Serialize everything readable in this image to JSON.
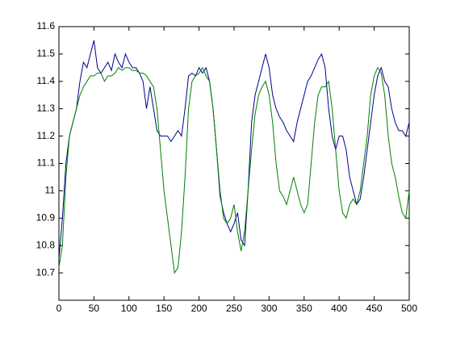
{
  "chart_data": {
    "type": "line",
    "x": [
      0,
      5,
      10,
      15,
      20,
      25,
      30,
      35,
      40,
      45,
      50,
      55,
      60,
      65,
      70,
      75,
      80,
      85,
      90,
      95,
      100,
      105,
      110,
      115,
      120,
      125,
      130,
      135,
      140,
      145,
      150,
      155,
      160,
      165,
      170,
      175,
      180,
      185,
      190,
      195,
      200,
      205,
      210,
      215,
      220,
      225,
      230,
      235,
      240,
      245,
      250,
      255,
      260,
      265,
      270,
      275,
      280,
      285,
      290,
      295,
      300,
      305,
      310,
      315,
      320,
      325,
      330,
      335,
      340,
      345,
      350,
      355,
      360,
      365,
      370,
      375,
      380,
      385,
      390,
      395,
      400,
      405,
      410,
      415,
      420,
      425,
      430,
      435,
      440,
      445,
      450,
      455,
      460,
      465,
      470,
      475,
      480,
      485,
      490,
      495,
      500
    ],
    "series": [
      {
        "color": "#00008b",
        "values": [
          10.75,
          10.9,
          11.1,
          11.2,
          11.25,
          11.3,
          11.4,
          11.47,
          11.45,
          11.5,
          11.55,
          11.45,
          11.43,
          11.45,
          11.47,
          11.44,
          11.5,
          11.47,
          11.45,
          11.5,
          11.47,
          11.45,
          11.45,
          11.43,
          11.4,
          11.3,
          11.38,
          11.3,
          11.22,
          11.2,
          11.2,
          11.2,
          11.18,
          11.2,
          11.22,
          11.2,
          11.3,
          11.42,
          11.43,
          11.42,
          11.45,
          11.43,
          11.45,
          11.4,
          11.3,
          11.15,
          10.98,
          10.92,
          10.88,
          10.85,
          10.88,
          10.92,
          10.82,
          10.8,
          11.0,
          11.25,
          11.35,
          11.4,
          11.45,
          11.5,
          11.45,
          11.35,
          11.3,
          11.27,
          11.25,
          11.22,
          11.2,
          11.18,
          11.25,
          11.3,
          11.35,
          11.4,
          11.42,
          11.45,
          11.48,
          11.5,
          11.45,
          11.3,
          11.2,
          11.15,
          11.2,
          11.2,
          11.15,
          11.05,
          11.0,
          10.95,
          10.97,
          11.05,
          11.15,
          11.25,
          11.35,
          11.42,
          11.45,
          11.4,
          11.38,
          11.3,
          11.25,
          11.22,
          11.22,
          11.2,
          11.25
        ]
      },
      {
        "color": "#008000",
        "values": [
          10.72,
          10.8,
          11.05,
          11.2,
          11.25,
          11.3,
          11.35,
          11.38,
          11.4,
          11.42,
          11.42,
          11.43,
          11.43,
          11.4,
          11.42,
          11.42,
          11.43,
          11.45,
          11.44,
          11.45,
          11.45,
          11.44,
          11.44,
          11.43,
          11.43,
          11.42,
          11.4,
          11.38,
          11.3,
          11.15,
          11.0,
          10.9,
          10.8,
          10.7,
          10.72,
          10.85,
          11.05,
          11.3,
          11.4,
          11.42,
          11.43,
          11.45,
          11.42,
          11.4,
          11.3,
          11.15,
          11.0,
          10.9,
          10.88,
          10.9,
          10.95,
          10.85,
          10.78,
          10.85,
          11.0,
          11.15,
          11.28,
          11.35,
          11.38,
          11.4,
          11.35,
          11.25,
          11.1,
          11.0,
          10.98,
          10.95,
          11.0,
          11.05,
          11.0,
          10.95,
          10.92,
          10.95,
          11.1,
          11.25,
          11.35,
          11.38,
          11.38,
          11.4,
          11.3,
          11.15,
          11.0,
          10.92,
          10.9,
          10.95,
          10.97,
          10.95,
          11.0,
          11.1,
          11.2,
          11.35,
          11.42,
          11.45,
          11.43,
          11.35,
          11.2,
          11.1,
          11.05,
          10.98,
          10.92,
          10.9,
          11.0
        ]
      }
    ],
    "xlim": [
      0,
      500
    ],
    "xticks": [
      0,
      50,
      100,
      150,
      200,
      250,
      300,
      350,
      400,
      450,
      500
    ],
    "ylim": [
      10.6,
      11.6
    ],
    "yticks": [
      10.7,
      10.8,
      10.9,
      11,
      11.1,
      11.2,
      11.3,
      11.4,
      11.5,
      11.6
    ]
  }
}
